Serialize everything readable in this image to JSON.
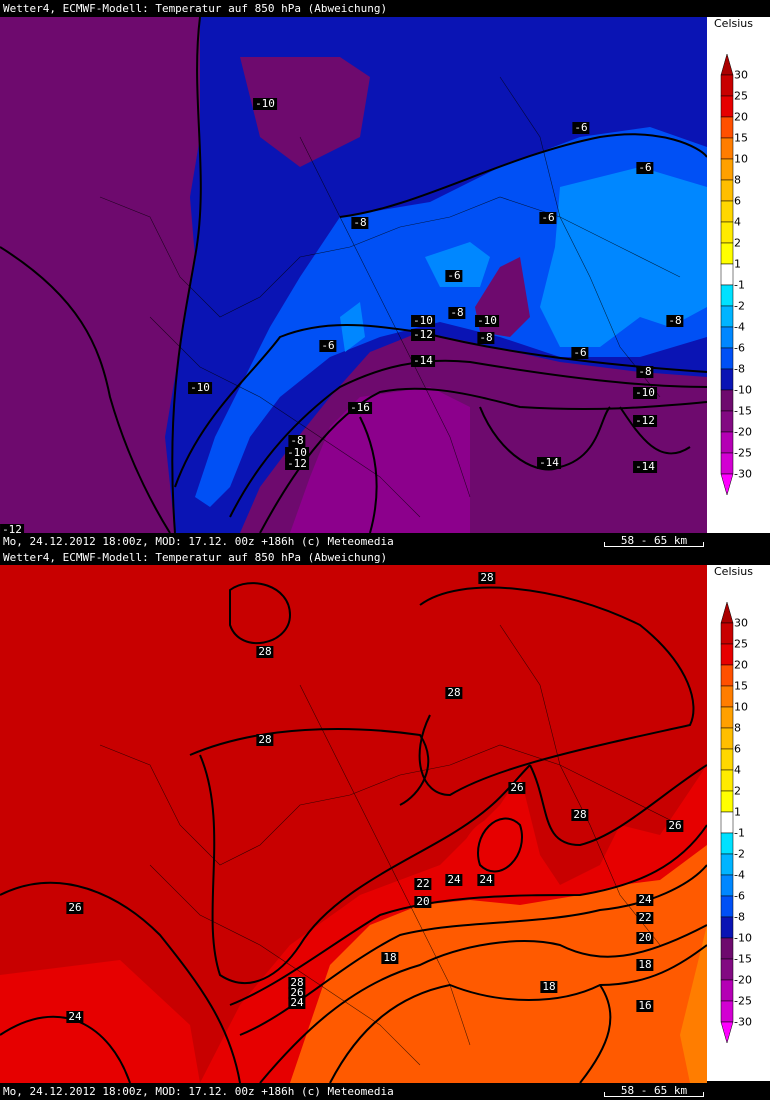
{
  "panels": [
    {
      "title": "Wetter4, ECMWF-Modell: Temperatur auf 850 hPa (Abweichung)",
      "footer": "Mo, 24.12.2012 18:00z, MOD: 17.12. 00z +186h (c) Meteomedia",
      "scale": "58 - 65 km",
      "unit": "Celsius",
      "contour_labels": [
        "-10",
        "-6",
        "-6",
        "-8",
        "-6",
        "-6",
        "-8",
        "-10",
        "-12",
        "-10",
        "-8",
        "-6",
        "-6",
        "-8",
        "-14",
        "-10",
        "-8",
        "-10",
        "-12",
        "-16",
        "-8",
        "-10",
        "-12",
        "-14",
        "-14",
        "-12"
      ]
    },
    {
      "title": "Wetter4, ECMWF-Modell: Temperatur auf 850 hPa (Abweichung)",
      "footer": "Mo, 24.12.2012 18:00z, MOD: 17.12. 00z +186h (c) Meteomedia",
      "scale": "58 - 65 km",
      "unit": "Celsius",
      "contour_labels": [
        "28",
        "28",
        "28",
        "28",
        "26",
        "28",
        "26",
        "22",
        "24",
        "24",
        "20",
        "24",
        "22",
        "20",
        "18",
        "18",
        "18",
        "16",
        "26",
        "24",
        "28",
        "26",
        "24"
      ]
    }
  ],
  "legend": {
    "ticks": [
      "30",
      "25",
      "20",
      "15",
      "10",
      "8",
      "6",
      "4",
      "2",
      "1",
      "-1",
      "-2",
      "-4",
      "-6",
      "-8",
      "-10",
      "-15",
      "-20",
      "-25",
      "-30"
    ],
    "colors": [
      "#aa0000",
      "#c80000",
      "#e60000",
      "#ff5000",
      "#ff7d00",
      "#ffa000",
      "#ffbe00",
      "#ffd700",
      "#ffeb00",
      "#ffff00",
      "#ffffff",
      "#00e1ff",
      "#00b4ff",
      "#0087ff",
      "#0050f5",
      "#0a14b4",
      "#6e0a6e",
      "#820a82",
      "#b400b4",
      "#d200d2",
      "#ff00ff"
    ]
  }
}
